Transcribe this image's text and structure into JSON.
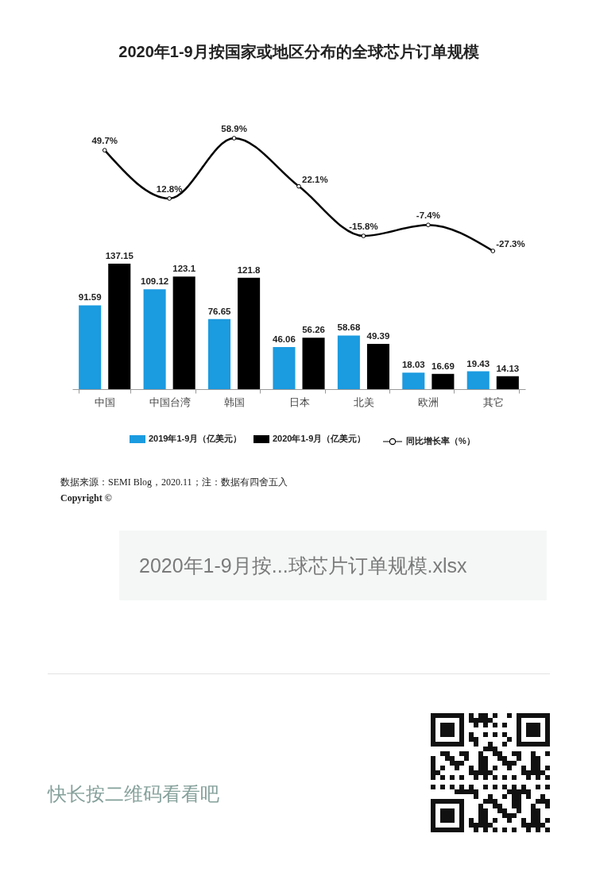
{
  "chart_data": [
    {
      "type": "line",
      "title": "2020年1-9月按国家或地区分布的全球芯片订单规模",
      "categories": [
        null,
        null,
        null,
        null,
        null,
        null,
        null
      ],
      "series": [
        {
          "name": "同比增长率（%）",
          "color": "#000000",
          "marker": "circle",
          "values": [
            49.7,
            12.8,
            58.9,
            22.1,
            -15.8,
            -7.4,
            -27.3
          ],
          "value_labels": [
            "49.7%",
            "12.8%",
            "58.9%",
            "22.1%",
            "-15.8%",
            "-7.4%",
            "-27.3%"
          ]
        }
      ],
      "tick_labels": false,
      "legend": "bottom"
    },
    {
      "type": "bar",
      "categories": [
        "中国",
        "中国台湾",
        "韩国",
        "日本",
        "北美",
        "欧洲",
        "其它"
      ],
      "series": [
        {
          "name": "2019年1-9月（亿美元）",
          "color": "#1b9be0",
          "values": [
            91.59,
            109.12,
            76.65,
            46.06,
            58.68,
            18.03,
            19.43
          ],
          "value_labels": [
            "91.59",
            "109.12",
            "76.65",
            "46.06",
            "58.68",
            "18.03",
            "19.43"
          ]
        },
        {
          "name": "2020年1-9月（亿美元）",
          "color": "#000000",
          "values": [
            137.15,
            123.1,
            121.8,
            56.26,
            49.39,
            16.69,
            14.13
          ],
          "value_labels": [
            "137.15",
            "123.1",
            "121.8",
            "56.26",
            "49.39",
            "16.69",
            "14.13"
          ]
        }
      ],
      "tick_labels": "x",
      "legend": "bottom",
      "annotations": [
        "数据来源：SEMI Blog，2020.11；注：数据有四舍五入",
        "Copyright ©",
        "2020年1-9月按...球芯片订单规模.xlsx",
        "快长按二维码看看吧"
      ]
    }
  ]
}
